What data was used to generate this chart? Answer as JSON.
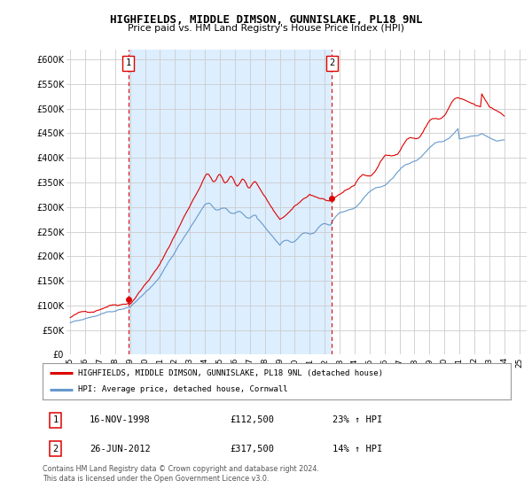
{
  "title": "HIGHFIELDS, MIDDLE DIMSON, GUNNISLAKE, PL18 9NL",
  "subtitle": "Price paid vs. HM Land Registry's House Price Index (HPI)",
  "ylabel_ticks": [
    "£0",
    "£50K",
    "£100K",
    "£150K",
    "£200K",
    "£250K",
    "£300K",
    "£350K",
    "£400K",
    "£450K",
    "£500K",
    "£550K",
    "£600K"
  ],
  "ytick_values": [
    0,
    50000,
    100000,
    150000,
    200000,
    250000,
    300000,
    350000,
    400000,
    450000,
    500000,
    550000,
    600000
  ],
  "ylim": [
    0,
    620000
  ],
  "xlim_start": 1994.75,
  "xlim_end": 2025.5,
  "xtick_years": [
    1995,
    1996,
    1997,
    1998,
    1999,
    2000,
    2001,
    2002,
    2003,
    2004,
    2005,
    2006,
    2007,
    2008,
    2009,
    2010,
    2011,
    2012,
    2013,
    2014,
    2015,
    2016,
    2017,
    2018,
    2019,
    2020,
    2021,
    2022,
    2023,
    2024,
    2025
  ],
  "legend_line1": "HIGHFIELDS, MIDDLE DIMSON, GUNNISLAKE, PL18 9NL (detached house)",
  "legend_line2": "HPI: Average price, detached house, Cornwall",
  "legend_line1_color": "#dd0000",
  "legend_line2_color": "#6699cc",
  "point1_label": "1",
  "point1_date": "16-NOV-1998",
  "point1_price": "£112,500",
  "point1_hpi": "23% ↑ HPI",
  "point1_x": 1998.88,
  "point1_y": 112500,
  "point2_label": "2",
  "point2_date": "26-JUN-2012",
  "point2_price": "£317,500",
  "point2_hpi": "14% ↑ HPI",
  "point2_x": 2012.49,
  "point2_y": 317500,
  "background_color": "#ffffff",
  "fill_color": "#ddeeff",
  "grid_color": "#cccccc",
  "footer_text": "Contains HM Land Registry data © Crown copyright and database right 2024.\nThis data is licensed under the Open Government Licence v3.0."
}
